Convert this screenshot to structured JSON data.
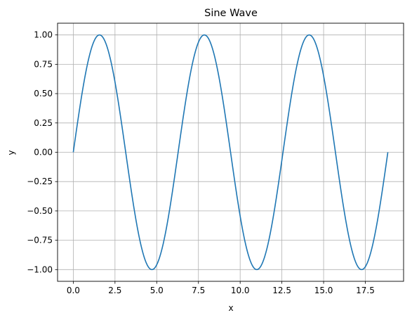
{
  "chart_data": {
    "type": "line",
    "title": "Sine Wave",
    "xlabel": "x",
    "ylabel": "y",
    "xlim": [
      -0.942,
      19.792
    ],
    "ylim": [
      -1.1,
      1.1
    ],
    "xticks": [
      0.0,
      2.5,
      5.0,
      7.5,
      10.0,
      12.5,
      15.0,
      17.5
    ],
    "xtick_labels": [
      "0.0",
      "2.5",
      "5.0",
      "7.5",
      "10.0",
      "12.5",
      "15.0",
      "17.5"
    ],
    "yticks": [
      -1.0,
      -0.75,
      -0.5,
      -0.25,
      0.0,
      0.25,
      0.5,
      0.75,
      1.0
    ],
    "ytick_labels": [
      "−1.00",
      "−0.75",
      "−0.50",
      "−0.25",
      "0.00",
      "0.25",
      "0.50",
      "0.75",
      "1.00"
    ],
    "grid": true,
    "series": [
      {
        "function": "sin(x)",
        "x_range": [
          0,
          18.85
        ],
        "color": "#1f77b4"
      }
    ]
  },
  "colors": {
    "line": "#1f77b4",
    "grid": "#b0b0b0",
    "axis": "#000000"
  }
}
